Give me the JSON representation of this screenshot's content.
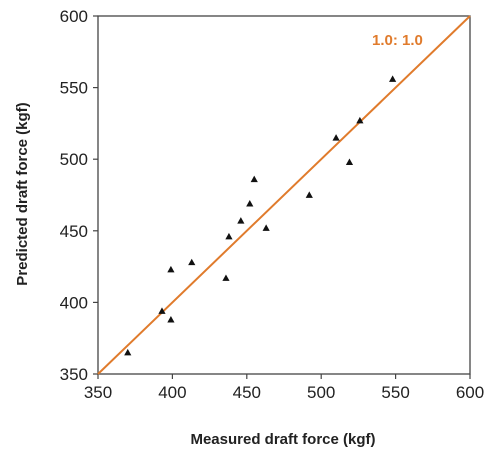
{
  "chart_data": {
    "type": "scatter",
    "xlabel": "Measured draft force (kgf)",
    "ylabel": "Predicted draft force (kgf)",
    "xlim": [
      350,
      600
    ],
    "ylim": [
      350,
      600
    ],
    "x_ticks": [
      "350",
      "400",
      "450",
      "500",
      "550",
      "600"
    ],
    "y_ticks": [
      "350",
      "400",
      "450",
      "500",
      "550",
      "600"
    ],
    "grid": false,
    "marker": "triangle",
    "marker_color": "#111111",
    "reference_line": {
      "label": "1.0: 1.0",
      "from": [
        350,
        350
      ],
      "to": [
        600,
        600
      ],
      "color": "#E07B2C"
    },
    "series": [
      {
        "points": [
          [
            370,
            365
          ],
          [
            393,
            394
          ],
          [
            399,
            388
          ],
          [
            399,
            423
          ],
          [
            413,
            428
          ],
          [
            436,
            417
          ],
          [
            438,
            446
          ],
          [
            446,
            457
          ],
          [
            452,
            469
          ],
          [
            455,
            486
          ],
          [
            463,
            452
          ],
          [
            492,
            475
          ],
          [
            510,
            515
          ],
          [
            519,
            498
          ],
          [
            526,
            527
          ],
          [
            548,
            556
          ]
        ]
      }
    ]
  }
}
